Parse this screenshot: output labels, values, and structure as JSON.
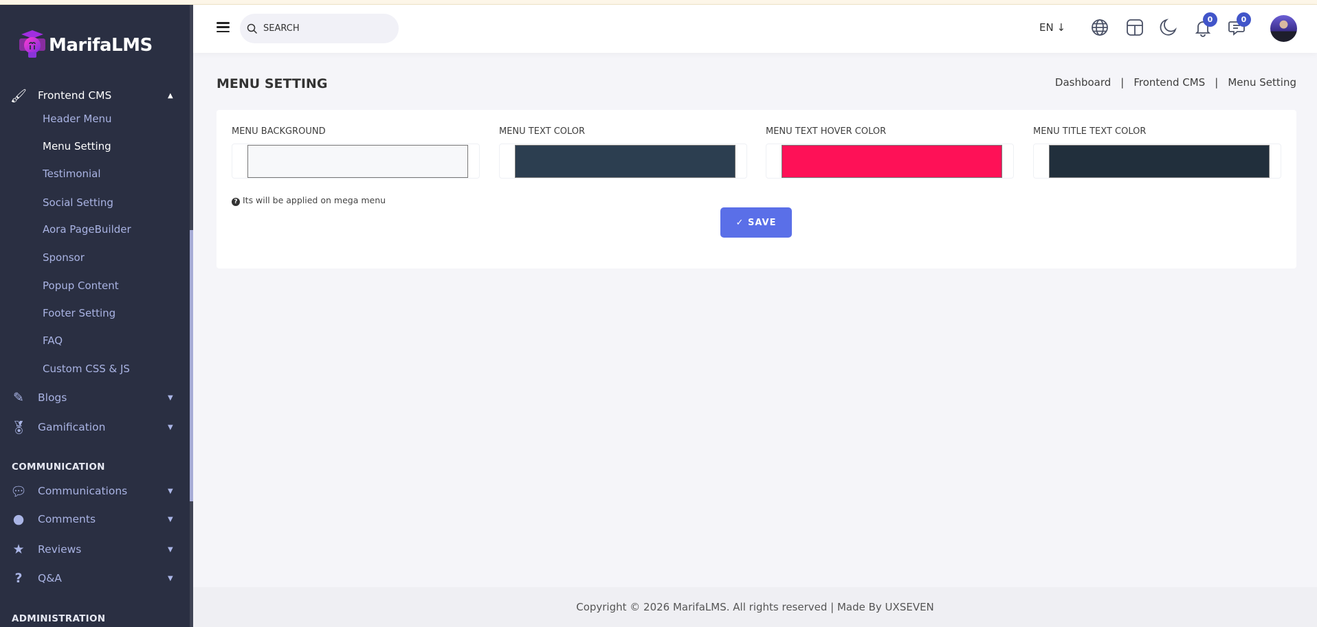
{
  "brand": {
    "name": "MarifaLMS"
  },
  "sidebar": {
    "group": {
      "label": "Frontend CMS",
      "icon": "paint-roller-icon",
      "expanded": true
    },
    "sub_items": [
      {
        "label": "Header Menu"
      },
      {
        "label": "Menu Setting",
        "active": true
      },
      {
        "label": "Testimonial"
      },
      {
        "label": "Social Setting"
      },
      {
        "label": "Aora PageBuilder"
      },
      {
        "label": "Sponsor"
      },
      {
        "label": "Popup Content"
      },
      {
        "label": "Footer Setting"
      },
      {
        "label": "FAQ"
      },
      {
        "label": "Custom CSS & JS"
      }
    ],
    "items": [
      {
        "label": "Blogs",
        "icon": "edit-icon"
      },
      {
        "label": "Gamification",
        "icon": "medal-icon"
      },
      {
        "label": "Communications",
        "icon": "comments-icon"
      },
      {
        "label": "Comments",
        "icon": "comment-icon"
      },
      {
        "label": "Reviews",
        "icon": "star-icon"
      },
      {
        "label": "Q&A",
        "icon": "question-icon"
      }
    ],
    "sections": {
      "communication": "COMMUNICATION",
      "administration": "ADMINISTRATION"
    }
  },
  "header": {
    "search_placeholder": "SEARCH",
    "language": "EN",
    "notifications_count": "0",
    "messages_count": "0"
  },
  "page": {
    "title": "MENU SETTING",
    "breadcrumb": [
      "Dashboard",
      "Frontend CMS",
      "Menu Setting"
    ],
    "separator": "|"
  },
  "form": {
    "fields": [
      {
        "label": "MENU BACKGROUND",
        "color": "#f7f8fa"
      },
      {
        "label": "MENU TEXT COLOR",
        "color": "#2c3e50"
      },
      {
        "label": "MENU TEXT HOVER COLOR",
        "color": "#fe1157"
      },
      {
        "label": "MENU TITLE TEXT COLOR",
        "color": "#212f3c"
      }
    ],
    "help_text": "Its will be applied on mega menu",
    "save_label": "SAVE"
  },
  "footer": {
    "text": "Copyright © 2026 MarifaLMS. All rights reserved | Made By UXSEVEN"
  },
  "colors": {
    "sidebar": "#2a2f42",
    "accent": "#5a6fe8",
    "badge": "#4155c9"
  }
}
